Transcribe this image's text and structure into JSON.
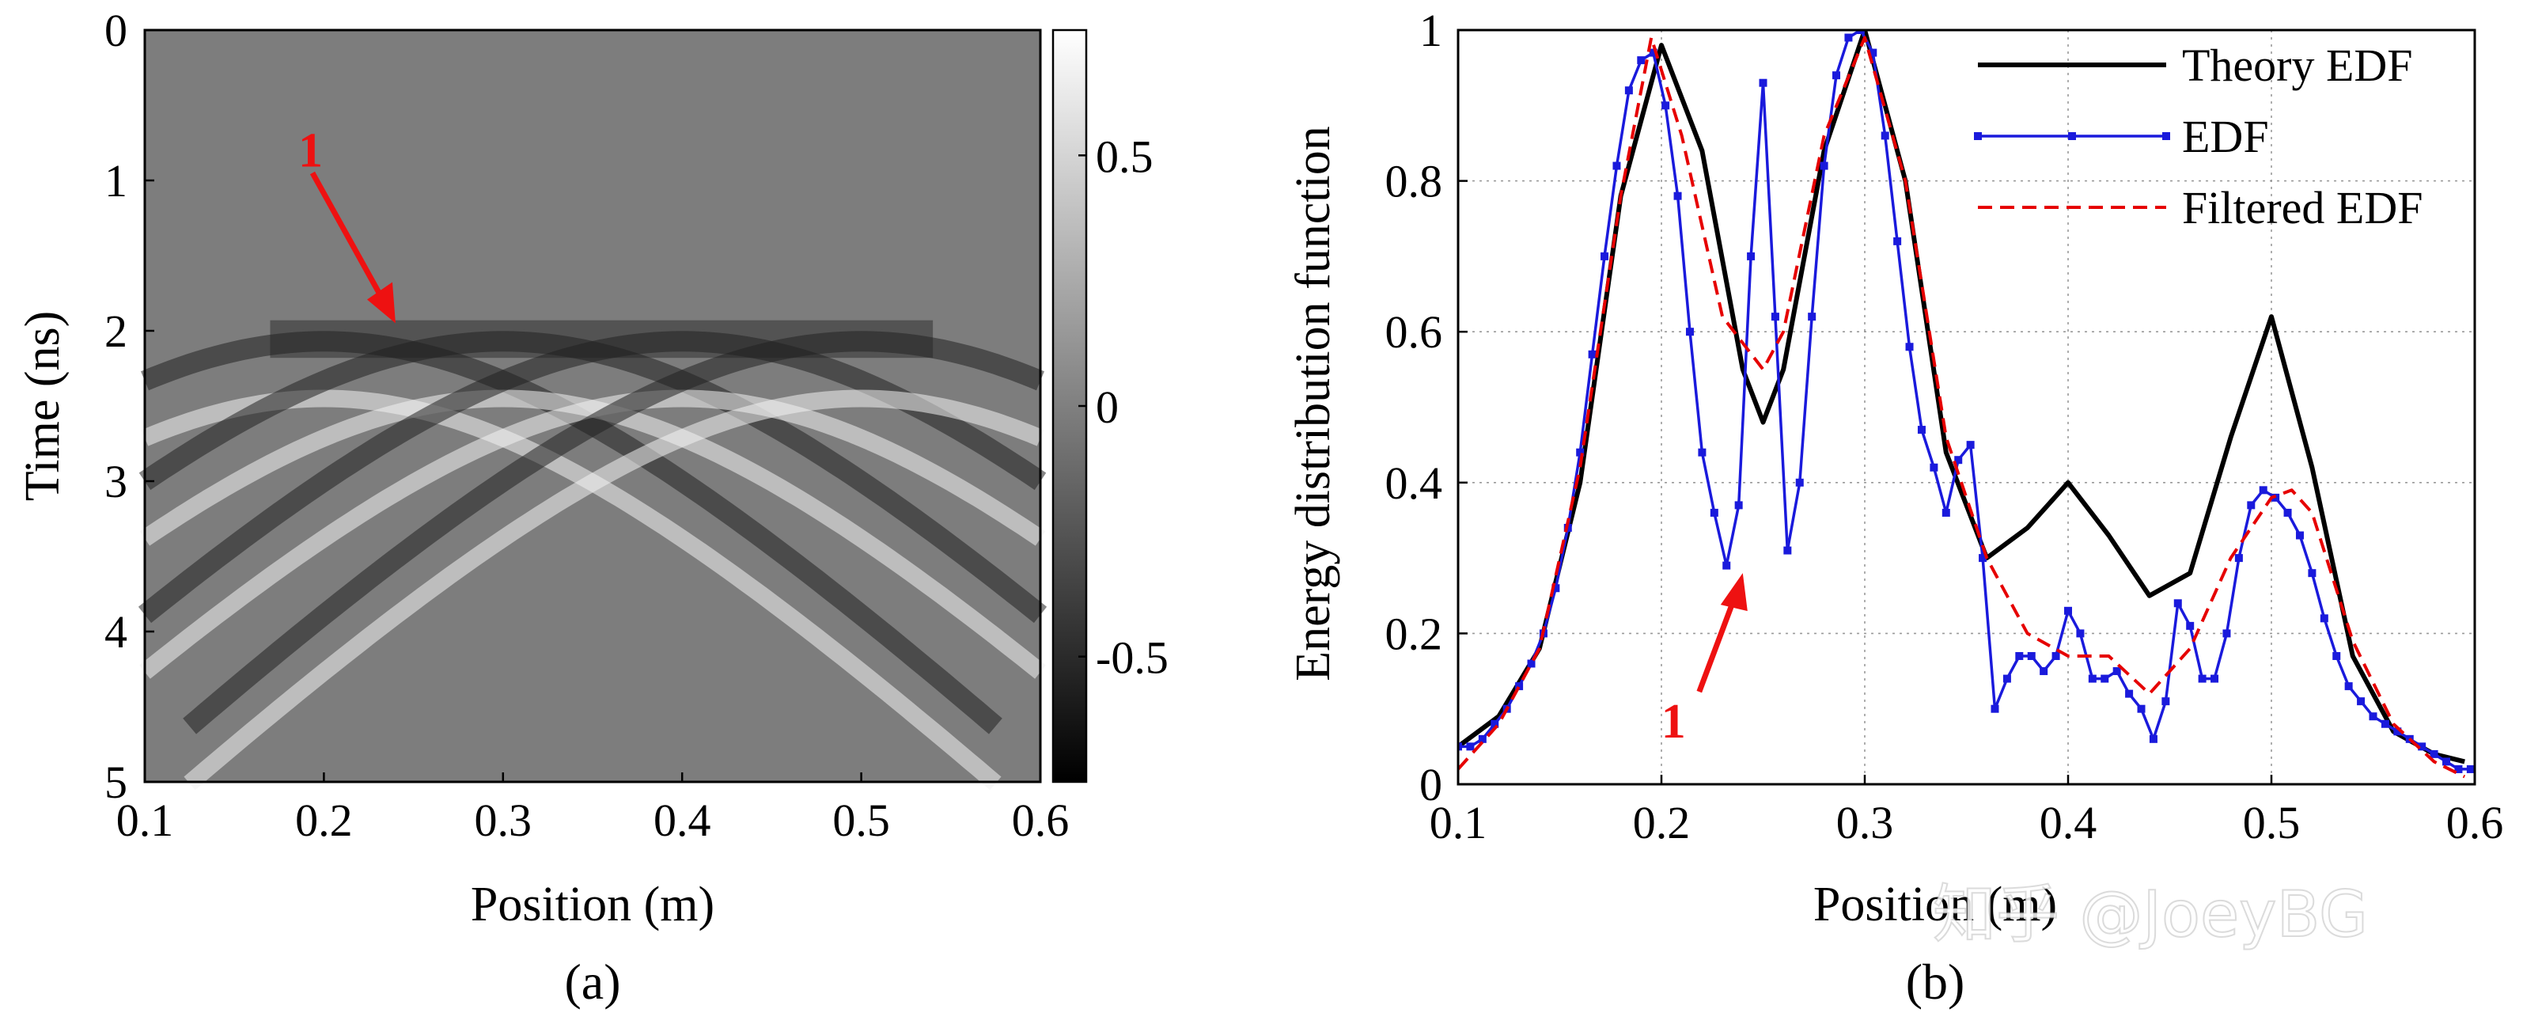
{
  "colors": {
    "theory": "#000000",
    "edf": "#1a1adc",
    "filtered": "#e60000",
    "annotation": "#ee1111",
    "grid": "#9a9a9a"
  },
  "watermark": {
    "text": "知乎 @JoeyBG"
  },
  "chart_data": [
    {
      "type": "heatmap",
      "panel_label": "(a)",
      "title": "",
      "xlabel": "Position (m)",
      "ylabel": "Time (ns)",
      "xlim": [
        0.1,
        0.6
      ],
      "ylim": [
        0,
        5
      ],
      "xticks": [
        "0.1",
        "0.2",
        "0.3",
        "0.4",
        "0.5",
        "0.6"
      ],
      "yticks": [
        "0",
        "1",
        "2",
        "3",
        "4",
        "5"
      ],
      "colorbar": {
        "range": [
          -0.75,
          0.75
        ],
        "ticks": [
          "0.5",
          "0",
          "-0.5"
        ],
        "tick_values": [
          0.5,
          0,
          -0.5
        ]
      },
      "targets": [
        {
          "position": 0.2,
          "time": 2.45
        },
        {
          "position": 0.3,
          "time": 2.45
        },
        {
          "position": 0.4,
          "time": 2.45
        },
        {
          "position": 0.5,
          "time": 2.45
        }
      ],
      "annotation": {
        "label": "1",
        "points_to": {
          "position": 0.24,
          "time": 1.95
        }
      }
    },
    {
      "type": "line",
      "panel_label": "(b)",
      "title": "",
      "xlabel": "Position (m)",
      "ylabel": "Energy distribution function",
      "xlim": [
        0.1,
        0.6
      ],
      "ylim": [
        0,
        1
      ],
      "grid": true,
      "legend_position": "top-right",
      "xticks": [
        "0.1",
        "0.2",
        "0.3",
        "0.4",
        "0.5",
        "0.6"
      ],
      "yticks": [
        "0",
        "0.2",
        "0.4",
        "0.6",
        "0.8",
        "1"
      ],
      "series": [
        {
          "name": "Theory EDF",
          "style": "solid",
          "x": [
            0.1,
            0.12,
            0.14,
            0.16,
            0.18,
            0.2,
            0.22,
            0.24,
            0.25,
            0.26,
            0.28,
            0.3,
            0.32,
            0.34,
            0.36,
            0.38,
            0.4,
            0.42,
            0.44,
            0.46,
            0.48,
            0.5,
            0.52,
            0.54,
            0.56,
            0.58,
            0.595
          ],
          "y": [
            0.05,
            0.09,
            0.18,
            0.4,
            0.78,
            0.98,
            0.84,
            0.55,
            0.48,
            0.55,
            0.84,
            1.0,
            0.8,
            0.44,
            0.3,
            0.34,
            0.4,
            0.33,
            0.25,
            0.28,
            0.46,
            0.62,
            0.42,
            0.17,
            0.07,
            0.04,
            0.03
          ]
        },
        {
          "name": "EDF",
          "style": "solid-marker",
          "x": [
            0.1,
            0.106,
            0.112,
            0.118,
            0.124,
            0.13,
            0.136,
            0.142,
            0.148,
            0.154,
            0.16,
            0.166,
            0.172,
            0.178,
            0.184,
            0.19,
            0.196,
            0.202,
            0.208,
            0.214,
            0.22,
            0.226,
            0.232,
            0.238,
            0.244,
            0.25,
            0.256,
            0.262,
            0.268,
            0.274,
            0.28,
            0.286,
            0.292,
            0.298,
            0.304,
            0.31,
            0.316,
            0.322,
            0.328,
            0.334,
            0.34,
            0.346,
            0.352,
            0.358,
            0.364,
            0.37,
            0.376,
            0.382,
            0.388,
            0.394,
            0.4,
            0.406,
            0.412,
            0.418,
            0.424,
            0.43,
            0.436,
            0.442,
            0.448,
            0.454,
            0.46,
            0.466,
            0.472,
            0.478,
            0.484,
            0.49,
            0.496,
            0.502,
            0.508,
            0.514,
            0.52,
            0.526,
            0.532,
            0.538,
            0.544,
            0.55,
            0.556,
            0.562,
            0.568,
            0.574,
            0.58,
            0.586,
            0.592,
            0.598
          ],
          "y": [
            0.05,
            0.05,
            0.06,
            0.08,
            0.1,
            0.13,
            0.16,
            0.2,
            0.26,
            0.34,
            0.44,
            0.57,
            0.7,
            0.82,
            0.92,
            0.96,
            0.97,
            0.9,
            0.78,
            0.6,
            0.44,
            0.36,
            0.29,
            0.37,
            0.7,
            0.93,
            0.62,
            0.31,
            0.4,
            0.62,
            0.82,
            0.94,
            0.99,
            1.0,
            0.97,
            0.86,
            0.72,
            0.58,
            0.47,
            0.42,
            0.36,
            0.43,
            0.45,
            0.3,
            0.1,
            0.14,
            0.17,
            0.17,
            0.15,
            0.17,
            0.23,
            0.2,
            0.14,
            0.14,
            0.15,
            0.12,
            0.1,
            0.06,
            0.11,
            0.24,
            0.21,
            0.14,
            0.14,
            0.2,
            0.3,
            0.37,
            0.39,
            0.38,
            0.36,
            0.33,
            0.28,
            0.22,
            0.17,
            0.13,
            0.11,
            0.09,
            0.08,
            0.07,
            0.06,
            0.05,
            0.04,
            0.03,
            0.02,
            0.02
          ]
        },
        {
          "name": "Filtered EDF",
          "style": "dashed",
          "x": [
            0.1,
            0.12,
            0.14,
            0.16,
            0.18,
            0.195,
            0.21,
            0.23,
            0.25,
            0.26,
            0.28,
            0.3,
            0.32,
            0.34,
            0.36,
            0.38,
            0.4,
            0.42,
            0.44,
            0.46,
            0.48,
            0.5,
            0.51,
            0.52,
            0.54,
            0.56,
            0.58,
            0.595
          ],
          "y": [
            0.02,
            0.08,
            0.18,
            0.42,
            0.78,
            0.99,
            0.86,
            0.62,
            0.55,
            0.6,
            0.86,
            0.99,
            0.8,
            0.46,
            0.3,
            0.2,
            0.17,
            0.17,
            0.12,
            0.18,
            0.3,
            0.38,
            0.39,
            0.36,
            0.19,
            0.08,
            0.03,
            0.01
          ]
        }
      ],
      "annotation": {
        "label": "1",
        "points_to": {
          "x": 0.24,
          "y": 0.28
        }
      }
    }
  ]
}
